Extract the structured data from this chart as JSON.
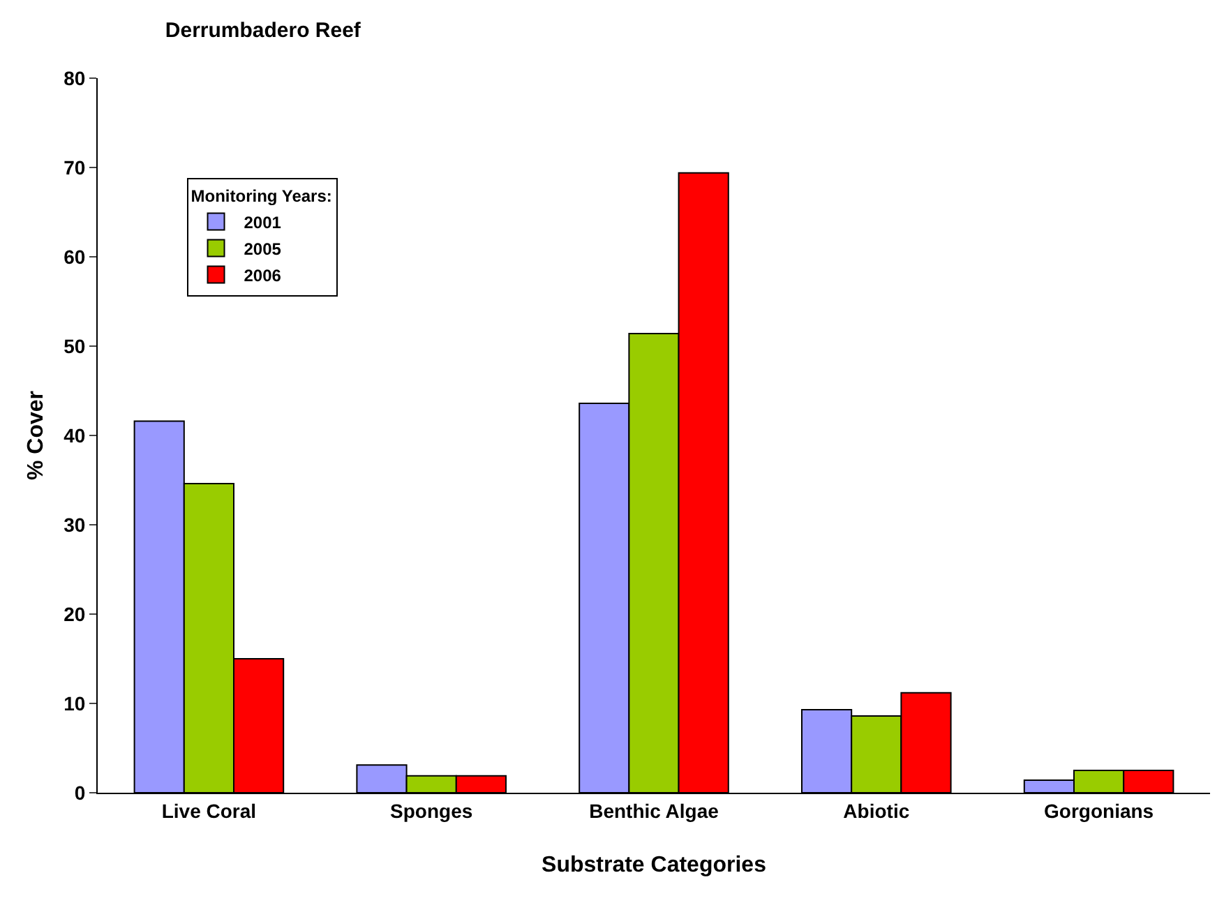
{
  "chart_data": {
    "type": "bar",
    "title": "Derrumbadero Reef",
    "xlabel": "Substrate Categories",
    "ylabel": "% Cover",
    "legend_title": "Monitoring Years:",
    "categories": [
      "Live Coral",
      "Sponges",
      "Benthic Algae",
      "Abiotic",
      "Gorgonians"
    ],
    "series": [
      {
        "name": "2001",
        "color": "#9999ff",
        "values": [
          41.6,
          3.1,
          43.6,
          9.3,
          1.4
        ]
      },
      {
        "name": "2005",
        "color": "#99cc00",
        "values": [
          34.6,
          1.9,
          51.4,
          8.6,
          2.5
        ]
      },
      {
        "name": "2006",
        "color": "#ff0000",
        "values": [
          15.0,
          1.9,
          69.4,
          11.2,
          2.5
        ]
      }
    ],
    "ylim": [
      0,
      80
    ],
    "yticks": [
      0,
      10,
      20,
      30,
      40,
      50,
      60,
      70,
      80
    ],
    "grid": false,
    "legend": "top left"
  }
}
